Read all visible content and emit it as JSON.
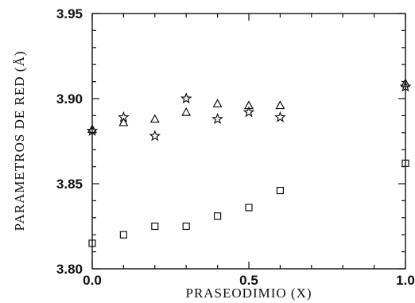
{
  "chart_data": {
    "type": "scatter",
    "title": "",
    "xlabel": "PRASEODIMIO (X)",
    "ylabel": "PARAMETROS DE RED (Å)",
    "xlim": [
      0.0,
      1.0
    ],
    "ylim": [
      3.8,
      3.95
    ],
    "x_ticks": [
      "0.0",
      "0.5",
      "1.0"
    ],
    "y_ticks": [
      "3.80",
      "3.85",
      "3.90",
      "3.95"
    ],
    "grid": false,
    "series": [
      {
        "marker": "triangle",
        "points": [
          [
            0.0,
            3.882
          ],
          [
            0.1,
            3.886
          ],
          [
            0.2,
            3.888
          ],
          [
            0.3,
            3.892
          ],
          [
            0.4,
            3.897
          ],
          [
            0.5,
            3.896
          ],
          [
            0.6,
            3.896
          ],
          [
            1.0,
            3.909
          ]
        ]
      },
      {
        "marker": "star",
        "points": [
          [
            0.0,
            3.881
          ],
          [
            0.1,
            3.889
          ],
          [
            0.2,
            3.878
          ],
          [
            0.3,
            3.9
          ],
          [
            0.4,
            3.888
          ],
          [
            0.5,
            3.892
          ],
          [
            0.6,
            3.889
          ],
          [
            1.0,
            3.907
          ]
        ]
      },
      {
        "marker": "square",
        "points": [
          [
            0.0,
            3.815
          ],
          [
            0.1,
            3.82
          ],
          [
            0.2,
            3.825
          ],
          [
            0.3,
            3.825
          ],
          [
            0.4,
            3.831
          ],
          [
            0.5,
            3.836
          ],
          [
            0.6,
            3.846
          ],
          [
            1.0,
            3.862
          ]
        ]
      }
    ]
  }
}
